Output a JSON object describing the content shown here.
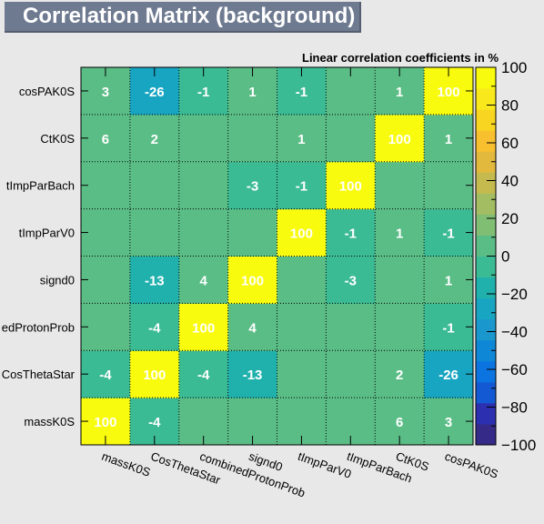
{
  "page_title": "Correlation Matrix (background)",
  "chart_data": {
    "type": "heatmap",
    "title": "Correlation Matrix (background)",
    "subtitle": "Linear correlation coefficients in %",
    "x_labels": [
      "massK0S",
      "CosThetaStar",
      "combinedProtonProb",
      "signd0",
      "tImpParV0",
      "tImpParBach",
      "CtK0S",
      "cosPAK0S"
    ],
    "y_labels": [
      "massK0S",
      "CosThetaStar",
      "combinedProtonProb",
      "signd0",
      "tImpParV0",
      "tImpParBach",
      "CtK0S",
      "cosPAK0S"
    ],
    "y_tick_text": [
      "massK0S",
      "CosThetaStar",
      "edProtonProb",
      "signd0",
      "tImpParV0",
      "tImpParBach",
      "CtK0S",
      "cosPAK0S"
    ],
    "matrix": [
      [
        100,
        -4,
        0,
        0,
        0,
        0,
        6,
        3
      ],
      [
        -4,
        100,
        -4,
        -13,
        0,
        0,
        2,
        -26
      ],
      [
        0,
        -4,
        100,
        4,
        0,
        0,
        0,
        -1
      ],
      [
        0,
        -13,
        4,
        100,
        0,
        -3,
        0,
        1
      ],
      [
        0,
        0,
        0,
        0,
        100,
        -1,
        1,
        -1
      ],
      [
        0,
        0,
        0,
        -3,
        -1,
        100,
        0,
        0
      ],
      [
        6,
        2,
        0,
        0,
        1,
        0,
        100,
        1
      ],
      [
        3,
        -26,
        -1,
        1,
        -1,
        0,
        1,
        100
      ]
    ],
    "zlim": [
      -100,
      100
    ],
    "colorbar_ticks": [
      100,
      80,
      60,
      40,
      20,
      0,
      -20,
      -40,
      -60,
      -80,
      -100
    ],
    "colorbar_tick_text": [
      "100",
      "80",
      "60",
      "40",
      "20",
      "0",
      "−20",
      "−40",
      "−60",
      "−80",
      "−100"
    ],
    "grid": true,
    "colors": {
      "background": "#e8e8e8",
      "title_bg": "#6e7a90",
      "palette": [
        "#352a87",
        "#2c2fb0",
        "#1459d4",
        "#0b74e0",
        "#0d87d6",
        "#1a97cc",
        "#18a5c2",
        "#20b1ad",
        "#3bbb94",
        "#5bbd86",
        "#80be74",
        "#a3bd62",
        "#c4ba4e",
        "#e2b93c",
        "#f8c02f",
        "#f8d521",
        "#f8e81c",
        "#f9fb0e"
      ]
    }
  }
}
